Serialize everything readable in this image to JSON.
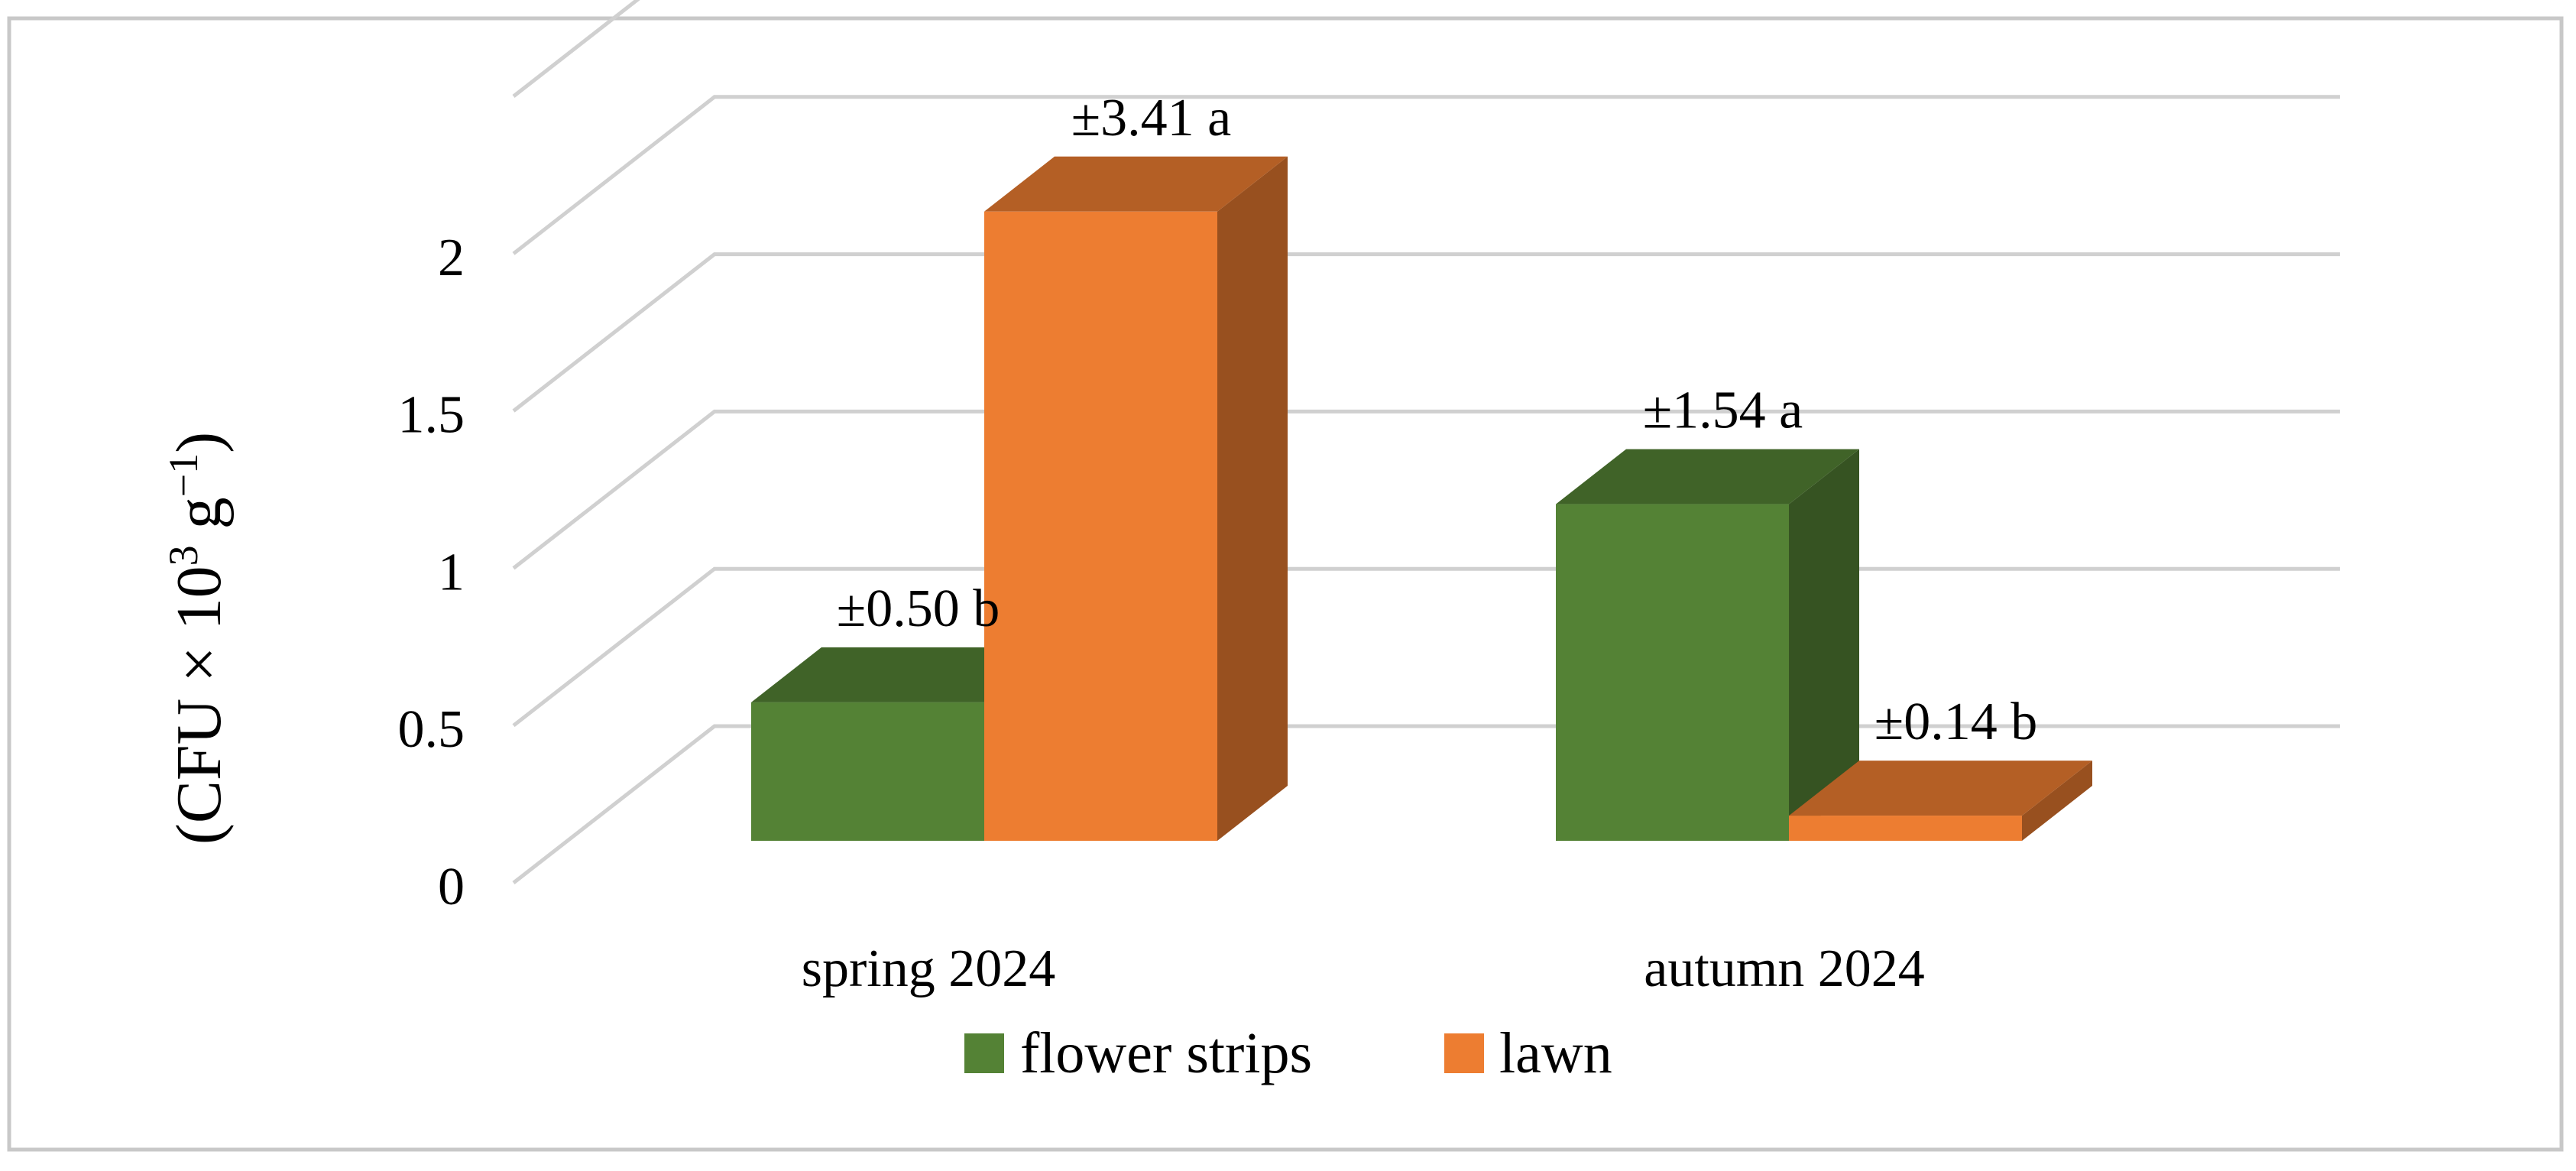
{
  "chart_data": {
    "type": "bar",
    "style": "3d-clustered",
    "title": "",
    "xlabel": "",
    "ylabel": "(CFU × 10",
    "ylabel_sup": "3",
    "ylabel_mid": " g",
    "ylabel_sup2": "−1",
    "ylabel_end": ")",
    "ylim": [
      0,
      2.5
    ],
    "yticks": [
      "0",
      "0.5",
      "1",
      "1.5",
      "2"
    ],
    "categories": [
      "spring 2024",
      "autumn 2024"
    ],
    "grid": true,
    "legend_position": "bottom",
    "series": [
      {
        "name": "flower strips",
        "color": "#548235",
        "values": [
          0.44,
          1.07
        ],
        "labels": [
          "±0.50 b",
          "±1.54 a"
        ]
      },
      {
        "name": "lawn",
        "color": "#ED7D31",
        "values": [
          2.0,
          0.08
        ],
        "labels": [
          "±3.41 a",
          "±0.14 b"
        ]
      }
    ]
  }
}
